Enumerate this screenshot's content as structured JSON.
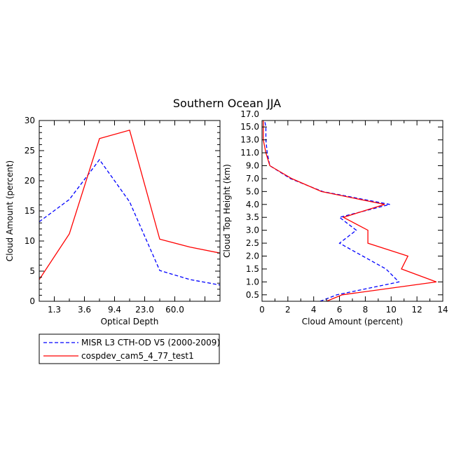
{
  "title": "Southern Ocean JJA",
  "colors": {
    "obs": "#0000ff",
    "model": "#ff0000",
    "axis": "#000000"
  },
  "legend": {
    "entries": [
      {
        "label": "MISR L3 CTH-OD V5 (2000-2009)",
        "color": "#0000ff",
        "style": "dashed"
      },
      {
        "label": "cospdev_cam5_4_77_test1",
        "color": "#ff0000",
        "style": "solid"
      }
    ]
  },
  "chart_data": [
    {
      "type": "line",
      "xlabel": "Optical Depth",
      "ylabel": "Cloud Amount (percent)",
      "xlim": [
        0,
        6
      ],
      "ylim": [
        0,
        30
      ],
      "x_ticks": [
        0.5,
        1.5,
        2.5,
        3.5,
        4.5,
        5.5
      ],
      "x_tick_labels": [
        "1.3",
        "3.6",
        "9.4",
        "23.0",
        "60.0",
        ""
      ],
      "x_minor_ticks": [
        1,
        2,
        3,
        4,
        5
      ],
      "y_ticks": [
        0,
        5,
        10,
        15,
        20,
        25,
        30
      ],
      "y_minor_ticks": [
        1,
        2,
        3,
        4,
        6,
        7,
        8,
        9,
        11,
        12,
        13,
        14,
        16,
        17,
        18,
        19,
        21,
        22,
        23,
        24,
        26,
        27,
        28,
        29
      ],
      "series": [
        {
          "name": "MISR L3 CTH-OD V5 (2000-2009)",
          "style": "dashed",
          "color": "#0000ff",
          "x": [
            0,
            1,
            2,
            3,
            4,
            5,
            6
          ],
          "y": [
            13.2,
            16.9,
            23.5,
            16.5,
            5.1,
            3.6,
            2.7
          ]
        },
        {
          "name": "cospdev_cam5_4_77_test1",
          "style": "solid",
          "color": "#ff0000",
          "x": [
            0,
            1,
            2,
            3,
            4,
            5,
            6
          ],
          "y": [
            3.6,
            11.2,
            27.0,
            28.4,
            10.3,
            9.0,
            8.0
          ]
        }
      ]
    },
    {
      "type": "line",
      "xlabel": "Cloud Amount (percent)",
      "ylabel": "Cloud Top Height (km)",
      "xlim": [
        0,
        14
      ],
      "ylim": [
        0,
        14
      ],
      "x_ticks": [
        0,
        2,
        4,
        6,
        8,
        10,
        12,
        14
      ],
      "x_minor_ticks": [
        1,
        3,
        5,
        7,
        9,
        11,
        13
      ],
      "y_ticks": [
        0.5,
        1.5,
        2.5,
        3.5,
        4.5,
        5.5,
        6.5,
        7.5,
        8.5,
        9.5,
        10.5,
        11.5,
        12.5,
        13.5
      ],
      "y_tick_labels": [
        "0.5",
        "1.0",
        "1.5",
        "2.0",
        "2.5",
        "3.0",
        "3.5",
        "4.0",
        "5.0",
        "7.0",
        "9.0",
        "11.0",
        "13.0",
        "15.0",
        "17.0"
      ],
      "y_tick_label_positions": [
        0.5,
        1.5,
        2.5,
        3.5,
        4.5,
        5.5,
        6.5,
        7.5,
        8.5,
        9.5,
        10.5,
        11.5,
        12.5,
        13.5,
        14.5
      ],
      "series": [
        {
          "name": "MISR L3 CTH-OD V5 (2000-2009)",
          "style": "dashed",
          "color": "#0000ff",
          "x": [
            4.5,
            5.8,
            10.6,
            9.6,
            7.8,
            6.0,
            7.3,
            6.0,
            9.9,
            4.7,
            2.2,
            0.6,
            0.4,
            0.3,
            0.3,
            0.2
          ],
          "y": [
            0,
            0.5,
            1.5,
            2.5,
            3.5,
            4.5,
            5.5,
            6.5,
            7.5,
            8.5,
            9.5,
            10.5,
            11.5,
            12.5,
            13.5,
            14.0
          ]
        },
        {
          "name": "cospdev_cam5_4_77_test1",
          "style": "solid",
          "color": "#ff0000",
          "x": [
            5.0,
            6.2,
            13.5,
            10.8,
            11.3,
            8.2,
            8.2,
            6.3,
            9.5,
            4.6,
            2.3,
            0.6,
            0.3,
            0.1,
            0.1,
            0.1
          ],
          "y": [
            0,
            0.5,
            1.5,
            2.5,
            3.5,
            4.5,
            5.5,
            6.5,
            7.5,
            8.5,
            9.5,
            10.5,
            11.5,
            12.5,
            13.5,
            14.0
          ]
        }
      ]
    }
  ]
}
